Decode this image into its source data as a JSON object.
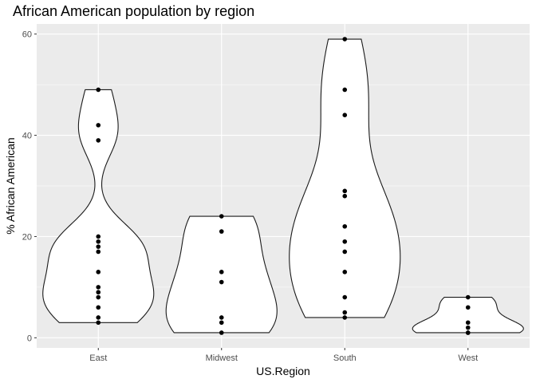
{
  "chart_data": {
    "type": "violin",
    "title": "African American population by region",
    "xlabel": "US.Region",
    "ylabel": "% African American",
    "categories": [
      "East",
      "Midwest",
      "South",
      "West"
    ],
    "ylim": [
      -2,
      62
    ],
    "yticks": [
      0,
      20,
      40,
      60
    ],
    "grid": true,
    "colors": {
      "panel": "#ebebeb",
      "grid": "#ffffff",
      "point": "#000000",
      "violin_stroke": "#1a1a1a"
    },
    "series": [
      {
        "category": "East",
        "values": [
          49,
          42,
          39,
          20,
          19,
          18,
          17,
          13,
          10,
          9,
          8,
          6,
          4,
          3
        ]
      },
      {
        "category": "Midwest",
        "values": [
          24,
          21,
          13,
          11,
          4,
          3,
          1
        ]
      },
      {
        "category": "South",
        "values": [
          59,
          49,
          44,
          29,
          28,
          22,
          19,
          17,
          13,
          8,
          5,
          4
        ]
      },
      {
        "category": "West",
        "values": [
          8,
          6,
          3,
          2,
          1,
          1
        ]
      }
    ]
  }
}
